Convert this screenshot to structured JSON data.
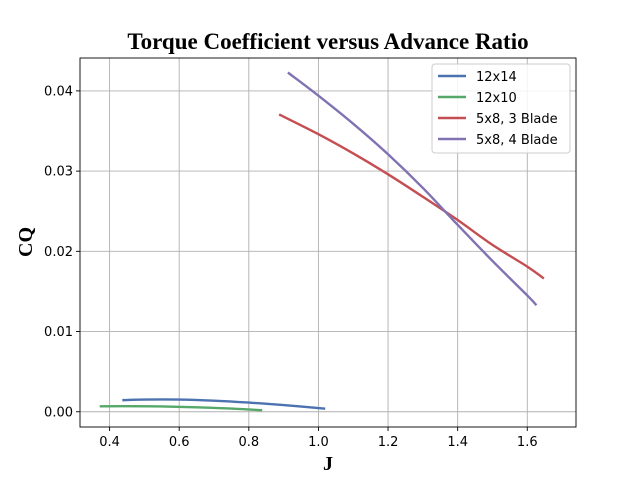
{
  "chart_data": {
    "type": "line",
    "title": "Torque Coefficient versus Advance Ratio",
    "xlabel": "J",
    "ylabel": "CQ",
    "xlim": [
      0.315,
      1.74
    ],
    "ylim": [
      -0.0019,
      0.0441
    ],
    "grid": true,
    "legend_position": "upper-right",
    "x_ticks": [
      0.4,
      0.6,
      0.8,
      1.0,
      1.2,
      1.4,
      1.6
    ],
    "x_tick_labels": [
      "0.4",
      "0.6",
      "0.8",
      "1.0",
      "1.2",
      "1.4",
      "1.6"
    ],
    "y_ticks": [
      0.0,
      0.01,
      0.02,
      0.03,
      0.04
    ],
    "y_tick_labels": [
      "0.00",
      "0.01",
      "0.02",
      "0.03",
      "0.04"
    ],
    "series": [
      {
        "name": "12x14",
        "color": "#4c72b0",
        "x": [
          0.44,
          0.5,
          0.6,
          0.7,
          0.8,
          0.9,
          1.016
        ],
        "y": [
          0.00145,
          0.00152,
          0.00152,
          0.00138,
          0.00114,
          0.00083,
          0.0004
        ]
      },
      {
        "name": "12x10",
        "color": "#55a868",
        "x": [
          0.375,
          0.45,
          0.55,
          0.65,
          0.75,
          0.835
        ],
        "y": [
          0.00068,
          0.0007,
          0.00066,
          0.00056,
          0.0004,
          0.0002
        ]
      },
      {
        "name": "5x8, 3 Blade",
        "color": "#c44e52",
        "x": [
          0.89,
          1.0,
          1.1,
          1.2,
          1.3,
          1.4,
          1.5,
          1.6,
          1.645
        ],
        "y": [
          0.037,
          0.0346,
          0.0322,
          0.0296,
          0.0268,
          0.0239,
          0.0208,
          0.0181,
          0.0167
        ]
      },
      {
        "name": "5x8, 4 Blade",
        "color": "#8172b2",
        "x": [
          0.915,
          1.0,
          1.1,
          1.2,
          1.3,
          1.4,
          1.5,
          1.6,
          1.624
        ],
        "y": [
          0.0422,
          0.0394,
          0.0359,
          0.0321,
          0.0279,
          0.0233,
          0.0188,
          0.0145,
          0.0134
        ]
      }
    ]
  }
}
